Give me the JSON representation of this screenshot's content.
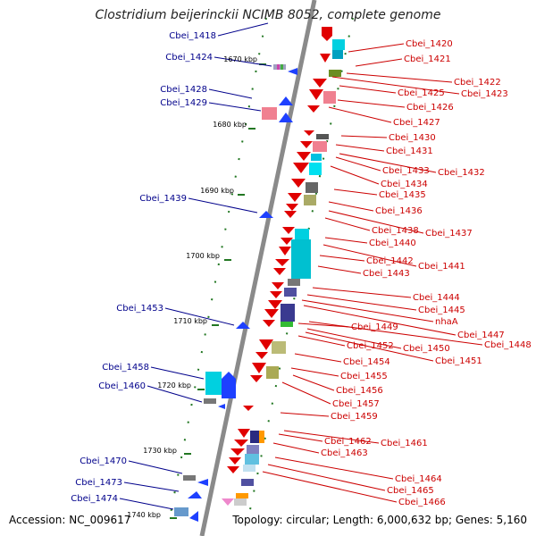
{
  "title": "Clostridium beijerinckii NCIMB 8052, complete genome",
  "accession": "Accession: NC_009617",
  "topology": "Topology: circular; Length: 6,000,632 bp; Genes: 5,160",
  "colors": {
    "forward_label": "#00008b",
    "reverse_label": "#cc0000",
    "backbone": "#888888",
    "tick": "#227722"
  },
  "kbp_ticks": [
    "1670 kbp",
    "1680 kbp",
    "1690 kbp",
    "1700 kbp",
    "1710 kbp",
    "1720 kbp",
    "1730 kbp",
    "1740 kbp"
  ],
  "forward_genes": [
    "Cbei_1418",
    "Cbei_1424",
    "Cbei_1428",
    "Cbei_1429",
    "Cbei_1439",
    "Cbei_1453",
    "Cbei_1458",
    "Cbei_1460",
    "Cbei_1470",
    "Cbei_1473",
    "Cbei_1474"
  ],
  "reverse_genes": [
    "Cbei_1420",
    "Cbei_1421",
    "Cbei_1422",
    "Cbei_1423",
    "Cbei_1425",
    "Cbei_1426",
    "Cbei_1427",
    "Cbei_1430",
    "Cbei_1431",
    "Cbei_1432",
    "Cbei_1433",
    "Cbei_1434",
    "Cbei_1435",
    "Cbei_1436",
    "Cbei_1437",
    "Cbei_1438",
    "Cbei_1440",
    "Cbei_1441",
    "Cbei_1442",
    "Cbei_1443",
    "Cbei_1444",
    "Cbei_1445",
    "nhaA",
    "Cbei_1447",
    "Cbei_1448",
    "Cbei_1449",
    "Cbei_1450",
    "Cbei_1451",
    "Cbei_1452",
    "Cbei_1454",
    "Cbei_1455",
    "Cbei_1456",
    "Cbei_1457",
    "Cbei_1459",
    "Cbei_1461",
    "Cbei_1462",
    "Cbei_1463",
    "Cbei_1464",
    "Cbei_1465",
    "Cbei_1466"
  ]
}
